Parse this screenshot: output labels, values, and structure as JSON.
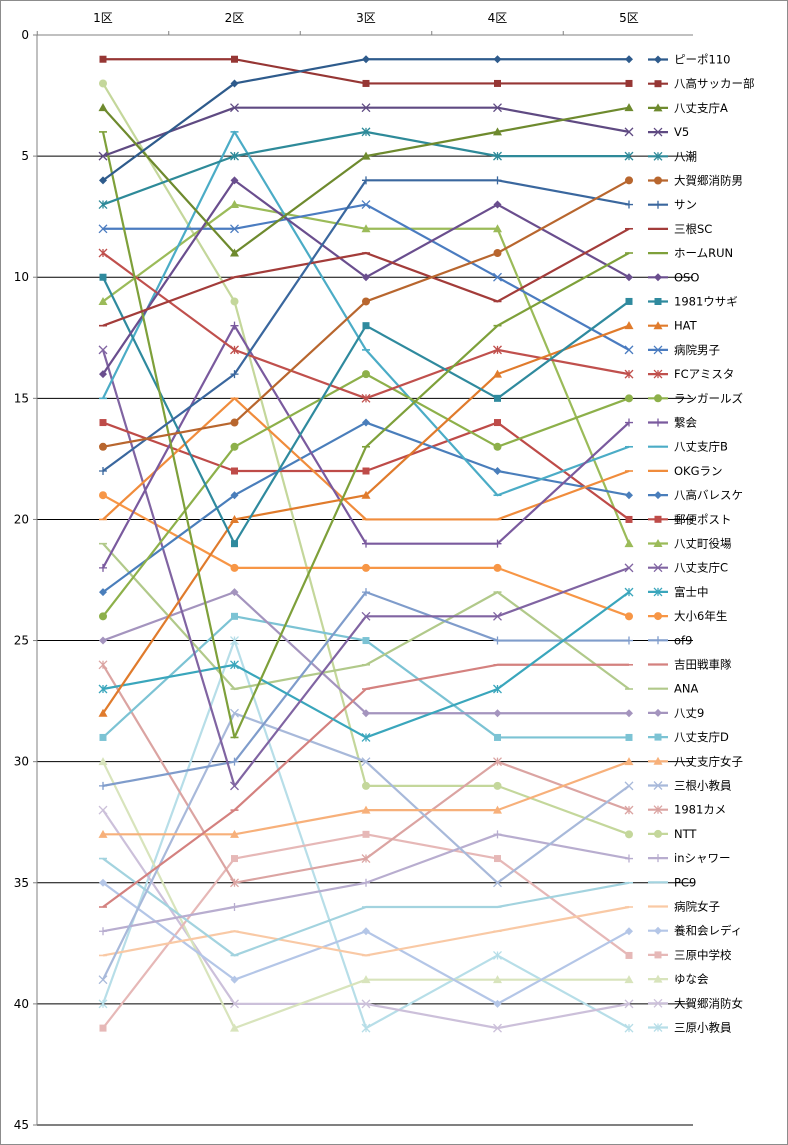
{
  "chart_data": {
    "type": "line",
    "title": "",
    "xlabel": "",
    "ylabel": "",
    "x": [
      "1区",
      "2区",
      "3区",
      "4区",
      "5区"
    ],
    "ylim": [
      0,
      45
    ],
    "y_inverted": true,
    "y_ticks": [
      0,
      5,
      10,
      15,
      20,
      25,
      30,
      35,
      40,
      45
    ],
    "x_axis_position": "top",
    "grid": "horizontal",
    "legend_position": "right",
    "series": [
      {
        "name": "ピーポ110",
        "color": "#2E5B8C",
        "marker": "diamond",
        "values": [
          6,
          2,
          1,
          1,
          1
        ]
      },
      {
        "name": "八高サッカー部",
        "color": "#963634",
        "marker": "square",
        "values": [
          1,
          1,
          2,
          2,
          2
        ]
      },
      {
        "name": "八丈支庁A",
        "color": "#6E8A2E",
        "marker": "triangle",
        "values": [
          3,
          9,
          5,
          4,
          3
        ]
      },
      {
        "name": "V5",
        "color": "#5F4A82",
        "marker": "x",
        "values": [
          5,
          3,
          3,
          3,
          4
        ]
      },
      {
        "name": "八潮",
        "color": "#2E8A99",
        "marker": "star",
        "values": [
          7,
          5,
          4,
          5,
          5
        ]
      },
      {
        "name": "大賀郷消防男",
        "color": "#B8662E",
        "marker": "circle",
        "values": [
          17,
          16,
          11,
          9,
          6
        ]
      },
      {
        "name": "サン",
        "color": "#3A679E",
        "marker": "plus",
        "values": [
          18,
          14,
          6,
          6,
          7
        ]
      },
      {
        "name": "三根SC",
        "color": "#A33C3A",
        "marker": "dash",
        "values": [
          12,
          10,
          9,
          11,
          8
        ]
      },
      {
        "name": "ホームRUN",
        "color": "#7EA03A",
        "marker": "dash",
        "values": [
          4,
          29,
          17,
          12,
          9
        ]
      },
      {
        "name": "OSO",
        "color": "#6A4E8E",
        "marker": "diamond",
        "values": [
          14,
          6,
          10,
          7,
          10
        ]
      },
      {
        "name": "1981ウサギ",
        "color": "#2F8A9E",
        "marker": "square",
        "values": [
          10,
          21,
          12,
          15,
          11
        ]
      },
      {
        "name": "HAT",
        "color": "#E07B2C",
        "marker": "triangle",
        "values": [
          28,
          20,
          19,
          14,
          12
        ]
      },
      {
        "name": "病院男子",
        "color": "#4B7CC0",
        "marker": "x",
        "values": [
          8,
          8,
          7,
          10,
          13
        ]
      },
      {
        "name": "FCアミスタ",
        "color": "#C0504D",
        "marker": "star",
        "values": [
          9,
          13,
          15,
          13,
          14
        ]
      },
      {
        "name": "ランガールズ",
        "color": "#8DB04A",
        "marker": "circle",
        "values": [
          24,
          17,
          14,
          17,
          15
        ]
      },
      {
        "name": "繋会",
        "color": "#7A5A9E",
        "marker": "plus",
        "values": [
          22,
          12,
          21,
          21,
          16
        ]
      },
      {
        "name": "八丈支庁B",
        "color": "#4BACC6",
        "marker": "dash",
        "values": [
          15,
          4,
          13,
          19,
          17
        ]
      },
      {
        "name": "OKGラン",
        "color": "#F08C3C",
        "marker": "dash",
        "values": [
          20,
          15,
          20,
          20,
          18
        ]
      },
      {
        "name": "八高バレスケ",
        "color": "#4A7EBB",
        "marker": "diamond",
        "values": [
          23,
          19,
          16,
          18,
          19
        ]
      },
      {
        "name": "郵便ポスト",
        "color": "#BE4B48",
        "marker": "square",
        "values": [
          16,
          18,
          18,
          16,
          20
        ]
      },
      {
        "name": "八丈町役場",
        "color": "#9BBB59",
        "marker": "triangle",
        "values": [
          11,
          7,
          8,
          8,
          21
        ]
      },
      {
        "name": "八丈支庁C",
        "color": "#8064A2",
        "marker": "x",
        "values": [
          13,
          31,
          24,
          24,
          22
        ]
      },
      {
        "name": "富士中",
        "color": "#3AA6BC",
        "marker": "star",
        "values": [
          27,
          26,
          29,
          27,
          23
        ]
      },
      {
        "name": "大小6年生",
        "color": "#F79646",
        "marker": "circle",
        "values": [
          19,
          22,
          22,
          22,
          24
        ]
      },
      {
        "name": "of9",
        "color": "#7F9CCB",
        "marker": "plus",
        "values": [
          31,
          30,
          23,
          25,
          25
        ]
      },
      {
        "name": "吉田戦車隊",
        "color": "#D4817F",
        "marker": "dash",
        "values": [
          36,
          32,
          27,
          26,
          26
        ]
      },
      {
        "name": "ANA",
        "color": "#B1C98A",
        "marker": "dash",
        "values": [
          21,
          27,
          26,
          23,
          27
        ]
      },
      {
        "name": "八丈9",
        "color": "#A494BE",
        "marker": "diamond",
        "values": [
          25,
          23,
          28,
          28,
          28
        ]
      },
      {
        "name": "八丈支庁D",
        "color": "#7CC3D4",
        "marker": "square",
        "values": [
          29,
          24,
          25,
          29,
          29
        ]
      },
      {
        "name": "八丈支庁女子",
        "color": "#F7B07A",
        "marker": "triangle",
        "values": [
          33,
          33,
          32,
          32,
          30
        ]
      },
      {
        "name": "三根小教員",
        "color": "#A8B9DA",
        "marker": "x",
        "values": [
          39,
          28,
          30,
          35,
          31
        ]
      },
      {
        "name": "1981カメ",
        "color": "#DBA4A2",
        "marker": "star",
        "values": [
          26,
          35,
          34,
          30,
          32
        ]
      },
      {
        "name": "NTT",
        "color": "#C4D79B",
        "marker": "circle",
        "values": [
          2,
          11,
          31,
          31,
          33
        ]
      },
      {
        "name": "inシャワー",
        "color": "#B8ADCF",
        "marker": "plus",
        "values": [
          37,
          36,
          35,
          33,
          34
        ]
      },
      {
        "name": "PC9",
        "color": "#A3D3DF",
        "marker": "dash",
        "values": [
          34,
          38,
          36,
          36,
          35
        ]
      },
      {
        "name": "病院女子",
        "color": "#F9C9A5",
        "marker": "dash",
        "values": [
          38,
          37,
          38,
          37,
          36
        ]
      },
      {
        "name": "養和会レディ",
        "color": "#B4C6E7",
        "marker": "diamond",
        "values": [
          35,
          39,
          37,
          40,
          37
        ]
      },
      {
        "name": "三原中学校",
        "color": "#E6B8B7",
        "marker": "square",
        "values": [
          41,
          34,
          33,
          34,
          38
        ]
      },
      {
        "name": "ゆな会",
        "color": "#D8E4BC",
        "marker": "triangle",
        "values": [
          30,
          41,
          39,
          39,
          39
        ]
      },
      {
        "name": "大賀郷消防女",
        "color": "#CCC0DA",
        "marker": "x",
        "values": [
          32,
          40,
          40,
          41,
          40
        ]
      },
      {
        "name": "三原小教員",
        "color": "#B7DEE8",
        "marker": "star",
        "values": [
          40,
          25,
          41,
          38,
          41
        ]
      }
    ]
  }
}
